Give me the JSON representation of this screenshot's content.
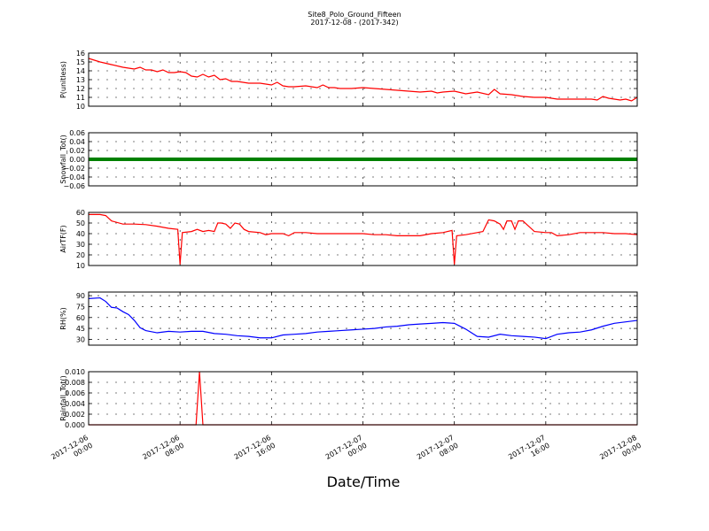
{
  "figure": {
    "title": "Site8_Polo_Ground_Fifteen",
    "subtitle": "2017-12-08 - (2017-342)",
    "xlabel": "Date/Time"
  },
  "chart_data": [
    {
      "type": "line",
      "title": "",
      "ylabel": "P(unitless)",
      "ylim": [
        10,
        16
      ],
      "yticks": [
        "10",
        "11",
        "12",
        "13",
        "14",
        "15",
        "16"
      ],
      "x_axis": {
        "ticks": [
          "2017-12-06\n00:00",
          "2017-12-06\n08:00",
          "2017-12-06\n16:00",
          "2017-12-07\n00:00",
          "2017-12-07\n08:00",
          "2017-12-07\n16:00",
          "2017-12-08\n00:00"
        ],
        "range_hours": [
          0,
          48
        ]
      },
      "grid": true,
      "color": "#ff0000",
      "series": [
        {
          "x_hours": [
            0,
            1,
            2,
            3,
            4,
            4.5,
            5,
            5.5,
            6,
            6.5,
            7,
            7.5,
            8,
            8.5,
            9,
            9.5,
            10,
            10.5,
            11,
            11.5,
            12,
            12.5,
            13,
            14,
            15,
            16,
            16.5,
            17,
            17.5,
            18,
            19,
            20,
            20.5,
            21,
            21.5,
            22,
            23,
            24,
            25,
            26,
            27,
            28,
            29,
            30,
            30.5,
            31,
            32,
            33,
            34,
            35,
            35.5,
            36,
            37,
            38,
            39,
            40,
            41,
            42,
            43,
            44,
            44.5,
            45,
            45.5,
            46,
            46.5,
            47,
            47.5,
            48
          ],
          "values": [
            15.4,
            15,
            14.7,
            14.4,
            14.2,
            14.4,
            14.1,
            14.1,
            13.9,
            14.1,
            13.8,
            13.8,
            13.9,
            13.8,
            13.4,
            13.3,
            13.6,
            13.3,
            13.5,
            13.0,
            13.1,
            12.8,
            12.8,
            12.6,
            12.6,
            12.4,
            12.7,
            12.3,
            12.2,
            12.2,
            12.3,
            12.1,
            12.4,
            12.1,
            12.1,
            12.0,
            12.0,
            12.1,
            12.0,
            11.9,
            11.8,
            11.7,
            11.6,
            11.7,
            11.5,
            11.6,
            11.7,
            11.4,
            11.6,
            11.3,
            11.9,
            11.4,
            11.3,
            11.1,
            11.0,
            11.0,
            10.8,
            10.8,
            10.8,
            10.8,
            10.7,
            11.1,
            10.9,
            10.8,
            10.7,
            10.8,
            10.6,
            11.0
          ]
        }
      ]
    },
    {
      "type": "line",
      "title": "",
      "ylabel": "Snowfall_Tot()",
      "ylim": [
        -0.06,
        0.06
      ],
      "yticks": [
        "−0.06",
        "−0.04",
        "−0.02",
        "0.00",
        "0.02",
        "0.04",
        "0.06"
      ],
      "grid": true,
      "color": "#008000",
      "series": [
        {
          "x_hours": [
            0,
            48
          ],
          "values": [
            0,
            0
          ]
        }
      ]
    },
    {
      "type": "line",
      "title": "",
      "ylabel": "AirTF(F)",
      "ylim": [
        10,
        60
      ],
      "yticks": [
        "10",
        "20",
        "30",
        "40",
        "50",
        "60"
      ],
      "grid": true,
      "color": "#ff0000",
      "series": [
        {
          "x_hours": [
            0,
            1,
            1.5,
            2,
            3,
            4,
            5,
            6,
            7,
            7.8,
            8,
            8.2,
            9,
            9.5,
            10,
            10.5,
            11,
            11.3,
            11.6,
            12,
            12.4,
            12.8,
            13.2,
            13.6,
            14,
            15,
            15.5,
            16,
            17,
            17.5,
            18,
            19,
            20,
            21,
            22,
            23,
            24,
            25,
            26,
            27,
            28,
            29,
            30,
            31,
            31.8,
            32,
            32.2,
            33,
            34,
            34.5,
            35,
            35.5,
            36,
            36.3,
            36.6,
            37,
            37.3,
            37.6,
            38,
            38.5,
            39,
            40,
            40.5,
            41,
            42,
            43,
            44,
            45,
            46,
            47,
            48
          ],
          "values": [
            58,
            58,
            57,
            52,
            49,
            49,
            48.5,
            47,
            45,
            44,
            11,
            41,
            42,
            44,
            42,
            43,
            42,
            50,
            50,
            49,
            45,
            50,
            49,
            44,
            42,
            41,
            39,
            40,
            40,
            38,
            41,
            41,
            40,
            40,
            40,
            40,
            40,
            39,
            39,
            38,
            38,
            38,
            40,
            41,
            43,
            11,
            38,
            39,
            41,
            42,
            53,
            52,
            49,
            44,
            52,
            52,
            44,
            52,
            52,
            47,
            42,
            41,
            41,
            38,
            39,
            41,
            41,
            41,
            40,
            40,
            39
          ]
        }
      ]
    },
    {
      "type": "line",
      "title": "",
      "ylabel": "RH(%)",
      "ylim": [
        22,
        95
      ],
      "yticks": [
        "30",
        "45",
        "60",
        "75",
        "90"
      ],
      "grid": true,
      "color": "#0000ff",
      "series": [
        {
          "x_hours": [
            0,
            1,
            1.5,
            2,
            2.5,
            3,
            3.5,
            4,
            4.5,
            5,
            6,
            7,
            8,
            9,
            10,
            11,
            12,
            13,
            14,
            15,
            16,
            17,
            18,
            19,
            20,
            21,
            22,
            23,
            24,
            25,
            26,
            27,
            28,
            29,
            30,
            31,
            32,
            33,
            34,
            35,
            36,
            37,
            38,
            39,
            40,
            41,
            42,
            43,
            44,
            45,
            46,
            47,
            48
          ],
          "values": [
            86,
            87,
            82,
            74,
            73,
            68,
            64,
            56,
            46,
            42,
            39,
            41,
            40,
            41,
            41,
            38,
            37,
            35,
            34,
            32,
            32,
            36,
            37,
            38,
            40,
            41,
            42,
            43,
            44,
            45,
            47,
            48,
            50,
            51,
            52,
            53,
            52,
            44,
            34,
            33,
            37,
            35,
            34,
            33,
            31,
            37,
            39,
            40,
            43,
            48,
            52,
            54,
            56
          ]
        }
      ]
    },
    {
      "type": "line",
      "title": "",
      "ylabel": "Rainfall_Tot()",
      "ylim": [
        0,
        0.01
      ],
      "yticks": [
        "0.000",
        "0.002",
        "0.004",
        "0.006",
        "0.008",
        "0.010"
      ],
      "grid": true,
      "color": "#ff0000",
      "series": [
        {
          "x_hours": [
            0,
            9.4,
            9.7,
            10.0,
            48
          ],
          "values": [
            0,
            0,
            0.01,
            0,
            0
          ]
        }
      ]
    }
  ]
}
